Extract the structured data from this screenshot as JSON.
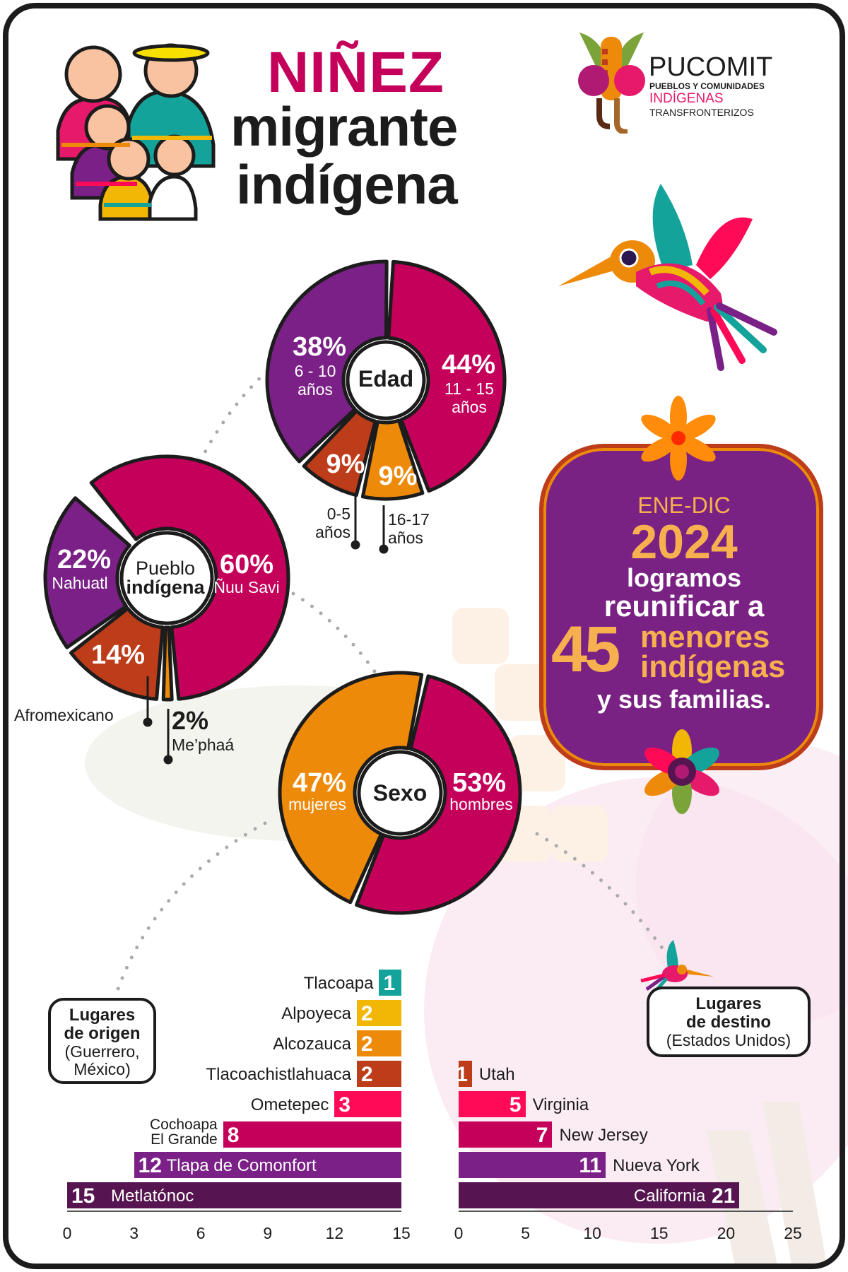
{
  "title": {
    "line1": "NIÑEZ",
    "line2": "migrante",
    "line3": "indígena"
  },
  "logo": {
    "name": "PUCOMIT",
    "line1": "PUEBLOS Y COMUNIDADES",
    "line2": "INDÍGENAS",
    "line3": "TRANSFRONTERIZOS"
  },
  "colors": {
    "magenta": "#c4005a",
    "purple": "#7a2087",
    "rust": "#bd3c1a",
    "orange": "#ee8a0a",
    "yellow": "#f2b705",
    "teal": "#14a39a",
    "pink": "#ff0a56",
    "plum": "#561550",
    "gold": "#f7b04f"
  },
  "highlight": {
    "period": "ENE-DIC",
    "year": "2024",
    "line1": "logramos",
    "line2": "reunificar a",
    "number": "45",
    "line3": "menores",
    "line4": "indígenas",
    "line5": "y sus familias."
  },
  "chart_data": [
    {
      "type": "pie",
      "title": "Edad",
      "slices": [
        {
          "pct": "44%",
          "value": 44,
          "label1": "11 - 15",
          "label2": "años",
          "color": "#c4005a"
        },
        {
          "pct": "9%",
          "value": 9,
          "label1": "16-17",
          "label2": "años",
          "color": "#ee8a0a"
        },
        {
          "pct": "9%",
          "value": 9,
          "label1": "0-5",
          "label2": "años",
          "color": "#bd3c1a"
        },
        {
          "pct": "38%",
          "value": 38,
          "label1": "6 - 10",
          "label2": "años",
          "color": "#7a2087"
        }
      ]
    },
    {
      "type": "pie",
      "title_line1": "Pueblo",
      "title_line2": "indígena",
      "slices": [
        {
          "pct": "60%",
          "value": 60,
          "label": "Ñuu Savi",
          "color": "#c4005a"
        },
        {
          "pct": "2%",
          "value": 2,
          "label": "Me’phaá",
          "color": "#ee8a0a"
        },
        {
          "pct": "14%",
          "value": 14,
          "label": "Afromexicano",
          "color": "#bd3c1a"
        },
        {
          "pct": "22%",
          "value": 22,
          "label": "Nahuatl",
          "color": "#7a2087"
        }
      ]
    },
    {
      "type": "pie",
      "title": "Sexo",
      "slices": [
        {
          "pct": "53%",
          "value": 53,
          "label": "hombres",
          "color": "#c4005a"
        },
        {
          "pct": "47%",
          "value": 47,
          "label": "mujeres",
          "color": "#ee8a0a"
        }
      ]
    },
    {
      "type": "bar",
      "orientation": "horizontal-left",
      "legend_title1": "Lugares",
      "legend_title2": "de origen",
      "legend_sub1": "(Guerrero,",
      "legend_sub2": "México)",
      "xlim": [
        0,
        15
      ],
      "ticks": [
        "0",
        "3",
        "6",
        "9",
        "12",
        "15"
      ],
      "bars": [
        {
          "label": "Tlacoapa",
          "value": 1,
          "color": "#14a39a"
        },
        {
          "label": "Alpoyeca",
          "value": 2,
          "color": "#f2b705"
        },
        {
          "label": "Alcozauca",
          "value": 2,
          "color": "#ee8a0a"
        },
        {
          "label": "Tlacoachistlahuaca",
          "value": 2,
          "color": "#bd3c1a"
        },
        {
          "label": "Ometepec",
          "value": 3,
          "color": "#ff0a56"
        },
        {
          "label": "Cochoapa El Grande",
          "label1": "Cochoapa",
          "label2": "El Grande",
          "value": 8,
          "color": "#c4005a"
        },
        {
          "label": "Tlapa de Comonfort",
          "value": 12,
          "color": "#7a2087"
        },
        {
          "label": "Metlatónoc",
          "value": 15,
          "color": "#561550"
        }
      ]
    },
    {
      "type": "bar",
      "orientation": "horizontal-right",
      "legend_title1": "Lugares",
      "legend_title2": "de destino",
      "legend_sub1": "(Estados Unidos)",
      "xlim": [
        0,
        25
      ],
      "ticks": [
        "0",
        "5",
        "10",
        "15",
        "20",
        "25"
      ],
      "bars": [
        {
          "label": "Utah",
          "value": 1,
          "color": "#bd3c1a"
        },
        {
          "label": "Virginia",
          "value": 5,
          "color": "#ff0a56"
        },
        {
          "label": "New Jersey",
          "value": 7,
          "color": "#c4005a"
        },
        {
          "label": "Nueva York",
          "value": 11,
          "color": "#7a2087"
        },
        {
          "label": "California",
          "value": 21,
          "color": "#561550"
        }
      ]
    }
  ]
}
